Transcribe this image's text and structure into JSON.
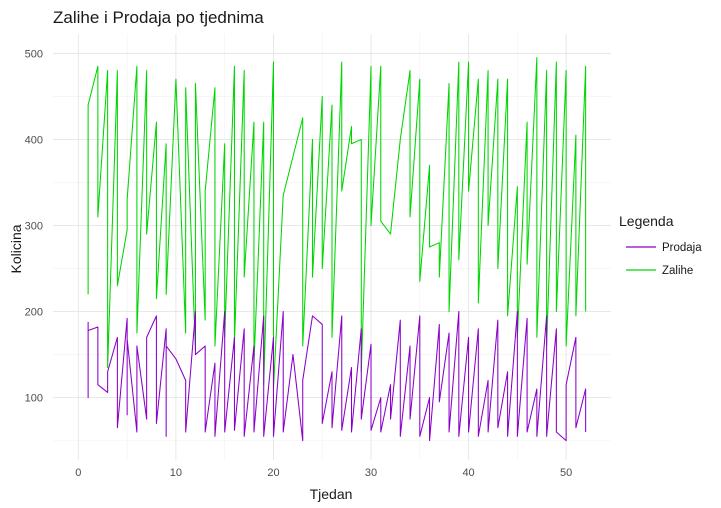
{
  "chart_data": {
    "type": "line",
    "title": "Zalihe i Prodaja po tjednima",
    "xlabel": "Tjedan",
    "ylabel": "Kolicina",
    "xlim": [
      0,
      52
    ],
    "ylim": [
      50,
      500
    ],
    "x_ticks": [
      0,
      10,
      20,
      30,
      40,
      50
    ],
    "y_ticks": [
      100,
      200,
      300,
      400,
      500
    ],
    "grid": true,
    "legend": {
      "title": "Legenda",
      "placement": "right"
    },
    "series": [
      {
        "name": "Prodaja",
        "color": "#8b00c9",
        "points": [
          [
            1,
            188
          ],
          [
            1,
            100
          ],
          [
            1,
            178
          ],
          [
            2,
            182
          ],
          [
            2,
            115
          ],
          [
            3,
            106
          ],
          [
            3,
            130
          ],
          [
            4,
            170
          ],
          [
            4,
            65
          ],
          [
            5,
            192
          ],
          [
            5,
            80
          ],
          [
            5,
            168
          ],
          [
            6,
            60
          ],
          [
            6,
            160
          ],
          [
            7,
            75
          ],
          [
            7,
            150
          ],
          [
            7,
            170
          ],
          [
            8,
            195
          ],
          [
            8,
            70
          ],
          [
            9,
            180
          ],
          [
            9,
            55
          ],
          [
            9,
            160
          ],
          [
            10,
            145
          ],
          [
            11,
            120
          ],
          [
            11,
            60
          ],
          [
            12,
            200
          ],
          [
            12,
            150
          ],
          [
            13,
            160
          ],
          [
            13,
            60
          ],
          [
            14,
            140
          ],
          [
            14,
            55
          ],
          [
            15,
            200
          ],
          [
            15,
            60
          ],
          [
            16,
            170
          ],
          [
            16,
            62
          ],
          [
            17,
            180
          ],
          [
            17,
            55
          ],
          [
            18,
            160
          ],
          [
            18,
            60
          ],
          [
            19,
            195
          ],
          [
            19,
            55
          ],
          [
            20,
            170
          ],
          [
            20,
            55
          ],
          [
            21,
            200
          ],
          [
            21,
            60
          ],
          [
            22,
            150
          ],
          [
            23,
            50
          ],
          [
            23,
            120
          ],
          [
            24,
            195
          ],
          [
            25,
            185
          ],
          [
            25,
            70
          ],
          [
            26,
            130
          ],
          [
            26,
            65
          ],
          [
            27,
            195
          ],
          [
            27,
            62
          ],
          [
            28,
            135
          ],
          [
            28,
            60
          ],
          [
            29,
            180
          ],
          [
            29,
            75
          ],
          [
            30,
            162
          ],
          [
            30,
            62
          ],
          [
            31,
            100
          ],
          [
            31,
            60
          ],
          [
            32,
            115
          ],
          [
            32,
            75
          ],
          [
            33,
            190
          ],
          [
            33,
            55
          ],
          [
            34,
            160
          ],
          [
            34,
            75
          ],
          [
            35,
            195
          ],
          [
            35,
            55
          ],
          [
            36,
            100
          ],
          [
            36,
            50
          ],
          [
            37,
            185
          ],
          [
            37,
            95
          ],
          [
            38,
            175
          ],
          [
            38,
            60
          ],
          [
            39,
            200
          ],
          [
            39,
            55
          ],
          [
            40,
            170
          ],
          [
            40,
            60
          ],
          [
            41,
            180
          ],
          [
            41,
            55
          ],
          [
            42,
            120
          ],
          [
            42,
            60
          ],
          [
            43,
            190
          ],
          [
            43,
            65
          ],
          [
            44,
            130
          ],
          [
            44,
            55
          ],
          [
            45,
            200
          ],
          [
            45,
            55
          ],
          [
            46,
            192
          ],
          [
            46,
            60
          ],
          [
            47,
            110
          ],
          [
            47,
            55
          ],
          [
            48,
            195
          ],
          [
            48,
            55
          ],
          [
            49,
            180
          ],
          [
            49,
            60
          ],
          [
            50,
            50
          ],
          [
            50,
            115
          ],
          [
            51,
            170
          ],
          [
            51,
            65
          ],
          [
            52,
            110
          ],
          [
            52,
            60
          ]
        ]
      },
      {
        "name": "Zalihe",
        "color": "#00d600",
        "points": [
          [
            1,
            220
          ],
          [
            1,
            440
          ],
          [
            2,
            485
          ],
          [
            2,
            310
          ],
          [
            3,
            480
          ],
          [
            3,
            135
          ],
          [
            4,
            480
          ],
          [
            4,
            230
          ],
          [
            5,
            295
          ],
          [
            5,
            330
          ],
          [
            6,
            485
          ],
          [
            6,
            175
          ],
          [
            7,
            480
          ],
          [
            7,
            290
          ],
          [
            8,
            420
          ],
          [
            8,
            215
          ],
          [
            9,
            395
          ],
          [
            9,
            220
          ],
          [
            10,
            470
          ],
          [
            11,
            175
          ],
          [
            11,
            460
          ],
          [
            12,
            155
          ],
          [
            12,
            465
          ],
          [
            13,
            190
          ],
          [
            13,
            340
          ],
          [
            14,
            460
          ],
          [
            14,
            160
          ],
          [
            15,
            395
          ],
          [
            15,
            170
          ],
          [
            16,
            485
          ],
          [
            16,
            165
          ],
          [
            17,
            480
          ],
          [
            17,
            240
          ],
          [
            18,
            420
          ],
          [
            18,
            140
          ],
          [
            19,
            420
          ],
          [
            19,
            115
          ],
          [
            20,
            490
          ],
          [
            20,
            110
          ],
          [
            21,
            335
          ],
          [
            22,
            380
          ],
          [
            23,
            425
          ],
          [
            23,
            160
          ],
          [
            24,
            400
          ],
          [
            24,
            240
          ],
          [
            25,
            450
          ],
          [
            25,
            250
          ],
          [
            26,
            440
          ],
          [
            26,
            170
          ],
          [
            27,
            490
          ],
          [
            27,
            340
          ],
          [
            28,
            415
          ],
          [
            28,
            395
          ],
          [
            29,
            400
          ],
          [
            29,
            130
          ],
          [
            30,
            485
          ],
          [
            30,
            300
          ],
          [
            31,
            485
          ],
          [
            31,
            305
          ],
          [
            32,
            290
          ],
          [
            33,
            400
          ],
          [
            34,
            480
          ],
          [
            34,
            310
          ],
          [
            35,
            470
          ],
          [
            35,
            235
          ],
          [
            36,
            370
          ],
          [
            36,
            275
          ],
          [
            37,
            280
          ],
          [
            37,
            240
          ],
          [
            38,
            465
          ],
          [
            38,
            200
          ],
          [
            39,
            490
          ],
          [
            39,
            260
          ],
          [
            40,
            490
          ],
          [
            40,
            340
          ],
          [
            41,
            470
          ],
          [
            41,
            210
          ],
          [
            42,
            480
          ],
          [
            42,
            300
          ],
          [
            43,
            470
          ],
          [
            43,
            250
          ],
          [
            44,
            470
          ],
          [
            44,
            195
          ],
          [
            45,
            345
          ],
          [
            45,
            170
          ],
          [
            46,
            420
          ],
          [
            46,
            255
          ],
          [
            47,
            495
          ],
          [
            47,
            170
          ],
          [
            48,
            480
          ],
          [
            48,
            160
          ],
          [
            49,
            490
          ],
          [
            49,
            200
          ],
          [
            50,
            480
          ],
          [
            50,
            160
          ],
          [
            51,
            405
          ],
          [
            51,
            195
          ],
          [
            52,
            485
          ],
          [
            52,
            200
          ]
        ]
      }
    ]
  }
}
